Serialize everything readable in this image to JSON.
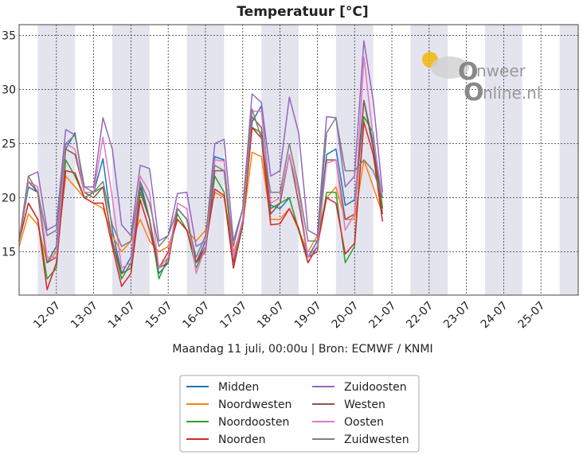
{
  "chart_data": {
    "type": "line",
    "title": "Temperatuur [°C]",
    "xlabel": "Maandag 11 juli, 00:00u  | Bron: ECMWF / KNMI",
    "ylabel": "",
    "ylim": [
      11,
      36
    ],
    "yticks": [
      15,
      20,
      25,
      30,
      35
    ],
    "xlim": [
      0,
      15
    ],
    "day_labels": [
      "12-07",
      "13-07",
      "14-07",
      "15-07",
      "16-07",
      "17-07",
      "18-07",
      "19-07",
      "20-07",
      "21-07",
      "22-07",
      "23-07",
      "24-07",
      "25-07"
    ],
    "grid": true,
    "legend_placement": "bottom-center",
    "x": [
      0,
      0.25,
      0.5,
      0.75,
      1,
      1.25,
      1.5,
      1.75,
      2,
      2.25,
      2.5,
      2.75,
      3,
      3.25,
      3.5,
      3.75,
      4,
      4.25,
      4.5,
      4.75,
      5,
      5.25,
      5.5,
      5.75,
      6,
      6.25,
      6.5,
      6.75,
      7,
      7.25,
      7.5,
      7.75,
      8,
      8.25,
      8.5,
      8.75,
      9,
      9.25,
      9.5,
      9.75
    ],
    "series": [
      {
        "name": "Midden",
        "color": "#1f77b4",
        "values": [
          16.0,
          21.0,
          20.5,
          14.0,
          15.5,
          24.5,
          26.0,
          20.5,
          20.5,
          23.6,
          17.0,
          13.0,
          14.5,
          21.5,
          18.0,
          13.0,
          14.0,
          19.0,
          18.0,
          14.0,
          16.0,
          23.8,
          23.5,
          14.5,
          18.0,
          27.0,
          28.5,
          19.3,
          19.0,
          20.0,
          17.0,
          14.5,
          16.0,
          24.0,
          24.5,
          19.3,
          19.8,
          29.0,
          25.0,
          19.0
        ]
      },
      {
        "name": "Noordwesten",
        "color": "#ff7f0e",
        "values": [
          15.5,
          18.5,
          17.5,
          14.0,
          15.0,
          22.0,
          21.0,
          20.0,
          19.5,
          19.0,
          16.5,
          15.0,
          16.0,
          18.0,
          16.0,
          15.0,
          15.5,
          18.0,
          17.0,
          16.0,
          17.0,
          20.5,
          20.0,
          15.0,
          17.5,
          24.2,
          23.8,
          18.0,
          18.0,
          19.0,
          17.0,
          15.0,
          16.5,
          20.0,
          21.0,
          18.0,
          18.0,
          23.5,
          21.0,
          18.5
        ]
      },
      {
        "name": "Noordoosten",
        "color": "#2ca02c",
        "values": [
          16.0,
          19.5,
          18.0,
          12.5,
          13.5,
          23.5,
          22.0,
          20.0,
          20.5,
          21.0,
          16.0,
          12.5,
          14.0,
          20.5,
          18.0,
          12.5,
          14.5,
          18.5,
          17.0,
          13.5,
          15.5,
          22.0,
          20.5,
          13.5,
          17.5,
          26.5,
          26.0,
          19.0,
          19.5,
          20.0,
          17.0,
          14.0,
          15.5,
          20.5,
          20.5,
          14.0,
          15.5,
          27.5,
          26.0,
          19.0
        ]
      },
      {
        "name": "Noorden",
        "color": "#d62728",
        "values": [
          16.0,
          19.5,
          18.0,
          11.5,
          14.0,
          22.5,
          22.3,
          20.0,
          19.5,
          19.5,
          15.5,
          11.8,
          13.0,
          19.8,
          17.0,
          13.5,
          15.0,
          18.0,
          17.0,
          14.0,
          15.5,
          20.8,
          20.2,
          13.5,
          17.5,
          26.5,
          25.5,
          17.5,
          17.6,
          19.0,
          17.2,
          14.0,
          15.5,
          20.0,
          19.5,
          14.8,
          15.8,
          27.0,
          24.0,
          17.8
        ]
      },
      {
        "name": "Zuidoosten",
        "color": "#9467bd",
        "values": [
          16.0,
          22.0,
          22.4,
          17.0,
          17.5,
          26.3,
          25.8,
          21.0,
          21.0,
          27.4,
          24.5,
          17.5,
          16.5,
          23.0,
          22.7,
          16.0,
          16.5,
          20.4,
          20.5,
          15.5,
          16.0,
          25.0,
          25.4,
          16.0,
          19.0,
          29.6,
          28.8,
          22.0,
          22.5,
          29.3,
          26.0,
          17.0,
          16.5,
          27.5,
          27.4,
          21.0,
          22.0,
          34.5,
          29.0,
          20.5
        ]
      },
      {
        "name": "Westen",
        "color": "#8c564b",
        "values": [
          16.0,
          21.5,
          20.5,
          14.0,
          14.5,
          24.5,
          24.0,
          20.5,
          20.0,
          21.0,
          16.0,
          13.0,
          13.5,
          21.0,
          18.0,
          13.5,
          14.0,
          19.0,
          18.0,
          14.0,
          15.0,
          22.5,
          22.5,
          14.0,
          17.5,
          27.5,
          26.5,
          18.5,
          19.5,
          24.0,
          19.5,
          14.5,
          15.0,
          23.5,
          23.5,
          18.0,
          18.5,
          29.0,
          24.5,
          18.5
        ]
      },
      {
        "name": "Oosten",
        "color": "#e377c2",
        "values": [
          16.0,
          21.5,
          21.0,
          14.5,
          14.5,
          25.0,
          24.5,
          20.5,
          20.5,
          25.6,
          20.0,
          13.5,
          14.0,
          22.0,
          20.5,
          13.5,
          14.5,
          19.5,
          19.0,
          13.0,
          15.5,
          23.5,
          23.4,
          14.5,
          18.0,
          28.0,
          28.0,
          19.5,
          20.0,
          24.0,
          20.5,
          14.5,
          15.5,
          23.2,
          23.5,
          17.0,
          18.5,
          33.0,
          25.5,
          20.0
        ]
      },
      {
        "name": "Zuidwesten",
        "color": "#7f7f7f",
        "values": [
          16.0,
          22.0,
          20.5,
          16.5,
          17.0,
          25.0,
          25.8,
          21.0,
          20.5,
          21.5,
          17.5,
          15.5,
          16.0,
          21.5,
          19.5,
          15.5,
          16.5,
          19.0,
          18.0,
          14.5,
          16.5,
          23.0,
          22.5,
          15.5,
          19.0,
          28.2,
          25.5,
          20.5,
          20.5,
          25.0,
          21.0,
          16.0,
          16.0,
          26.0,
          27.4,
          22.5,
          22.5,
          23.5,
          22.5,
          20.0
        ]
      }
    ]
  },
  "logo": {
    "line1": "nweer",
    "line2": "nline.nl"
  }
}
